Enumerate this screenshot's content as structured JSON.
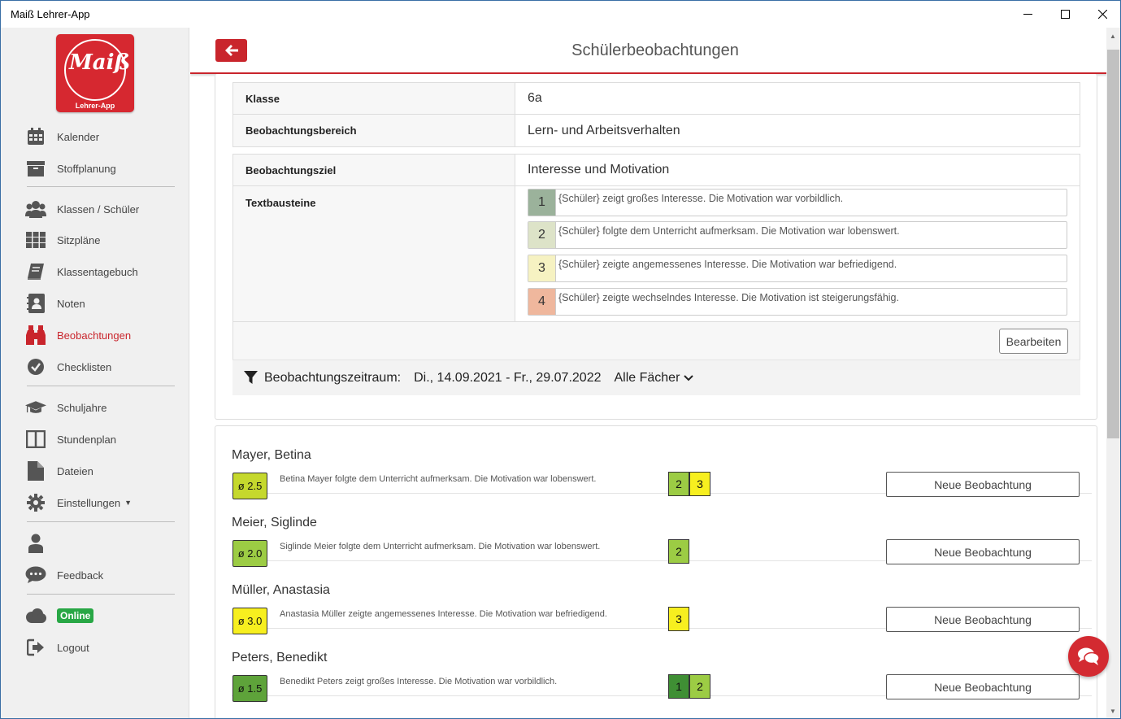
{
  "window": {
    "title": "Maiß Lehrer-App"
  },
  "logo": {
    "script": "Maiß",
    "subtitle": "Lehrer-App"
  },
  "sidebar": {
    "items": [
      {
        "label": "Kalender",
        "icon": "calendar-icon"
      },
      {
        "label": "Stoffplanung",
        "icon": "archive-icon"
      },
      {
        "label": "Klassen / Schüler",
        "icon": "users-icon"
      },
      {
        "label": "Sitzpläne",
        "icon": "grid-icon"
      },
      {
        "label": "Klassentagebuch",
        "icon": "book-icon"
      },
      {
        "label": "Noten",
        "icon": "grade-book-icon"
      },
      {
        "label": "Beobachtungen",
        "icon": "binoculars-icon",
        "active": true
      },
      {
        "label": "Checklisten",
        "icon": "check-circle-icon"
      },
      {
        "label": "Schuljahre",
        "icon": "graduation-cap-icon"
      },
      {
        "label": "Stundenplan",
        "icon": "columns-icon"
      },
      {
        "label": "Dateien",
        "icon": "file-icon"
      },
      {
        "label": "Einstellungen",
        "icon": "gear-icon"
      },
      {
        "label": "",
        "icon": "user-icon"
      },
      {
        "label": "Feedback",
        "icon": "comment-icon"
      },
      {
        "label": "Online",
        "icon": "cloud-icon"
      },
      {
        "label": "Logout",
        "icon": "logout-icon"
      }
    ]
  },
  "header": {
    "title": "Schülerbeobachtungen"
  },
  "info": {
    "klasse_label": "Klasse",
    "klasse_value": "6a",
    "bereich_label": "Beobachtungsbereich",
    "bereich_value": "Lern- und Arbeitsverhalten",
    "ziel_label": "Beobachtungsziel",
    "ziel_value": "Interesse und Motivation",
    "textbausteine_label": "Textbausteine",
    "textbausteine": [
      {
        "num": "1",
        "color": "#9bb29b",
        "text": "{Schüler} zeigt großes Interesse. Die Motivation war vorbildlich."
      },
      {
        "num": "2",
        "color": "#dde3c8",
        "text": "{Schüler} folgte dem Unterricht aufmerksam. Die Motivation war lobenswert."
      },
      {
        "num": "3",
        "color": "#f6f2c2",
        "text": "{Schüler} zeigte angemessenes Interesse. Die Motivation war befriedigend."
      },
      {
        "num": "4",
        "color": "#efb79d",
        "text": "{Schüler} zeigte wechselndes Interesse. Die Motivation ist steigerungsfähig."
      }
    ],
    "edit_button": "Bearbeiten"
  },
  "filter": {
    "label": "Beobachtungszeitraum:",
    "range": "Di., 14.09.2021 - Fr., 29.07.2022",
    "subject": "Alle Fächer"
  },
  "students": [
    {
      "name": "Mayer, Betina",
      "avg": "ø 2.5",
      "avg_color": "#c5d82d",
      "note": "Betina Mayer folgte dem Unterricht aufmerksam. Die Motivation war lobenswert.",
      "grades": [
        {
          "v": "2",
          "c": "#9ccc44"
        },
        {
          "v": "3",
          "c": "#f7ef1f"
        }
      ]
    },
    {
      "name": "Meier, Siglinde",
      "avg": "ø 2.0",
      "avg_color": "#9ccc44",
      "note": "Siglinde Meier folgte dem Unterricht aufmerksam. Die Motivation war lobenswert.",
      "grades": [
        {
          "v": "2",
          "c": "#9ccc44"
        }
      ]
    },
    {
      "name": "Müller, Anastasia",
      "avg": "ø 3.0",
      "avg_color": "#f7ef1f",
      "note": "Anastasia Müller zeigte angemessenes Interesse. Die Motivation war befriedigend.",
      "grades": [
        {
          "v": "3",
          "c": "#f7ef1f"
        }
      ]
    },
    {
      "name": "Peters, Benedikt",
      "avg": "ø 1.5",
      "avg_color": "#5ea33a",
      "note": "Benedikt Peters zeigt großes Interesse. Die Motivation war vorbildlich.",
      "grades": [
        {
          "v": "1",
          "c": "#3f8f34"
        },
        {
          "v": "2",
          "c": "#9ccc44"
        }
      ]
    }
  ],
  "new_observation_label": "Neue Beobachtung",
  "colors": {
    "brand": "#c9252c",
    "online": "#28a745"
  }
}
